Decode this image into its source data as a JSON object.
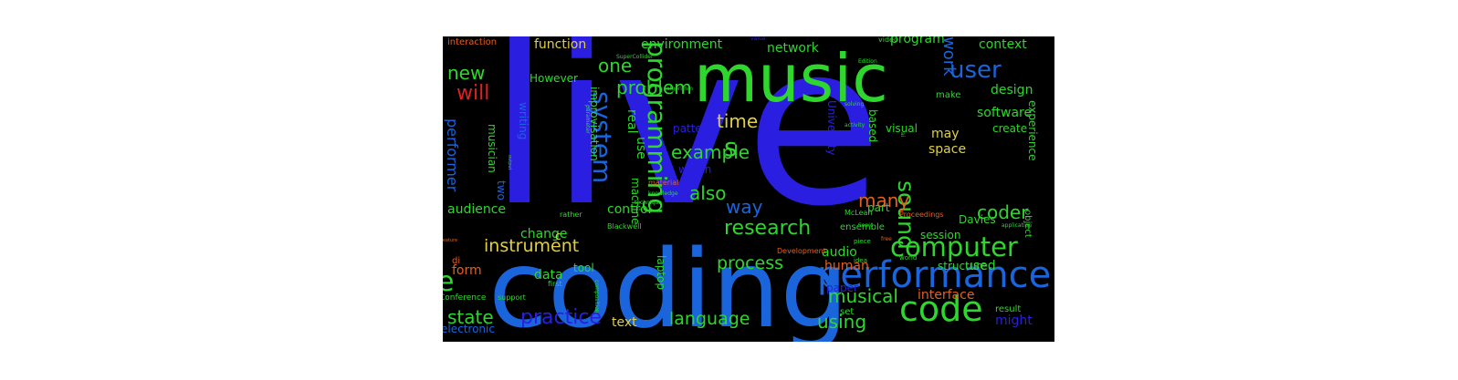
{
  "colors": {
    "background": "#000000",
    "page": "#ffffff"
  },
  "words": [
    {
      "text": "live",
      "color": "#2a1fe0"
    },
    {
      "text": "coding",
      "color": "#1a64dc"
    },
    {
      "text": "music",
      "color": "#2ed62e"
    },
    {
      "text": "performance",
      "color": "#1a64dc"
    },
    {
      "text": "code",
      "color": "#2ed62e"
    },
    {
      "text": "computer",
      "color": "#2ed62e"
    },
    {
      "text": "programming",
      "color": "#2ed62e"
    },
    {
      "text": "system",
      "color": "#1a64dc"
    },
    {
      "text": "s",
      "color": "#2ed62e"
    },
    {
      "text": "e",
      "color": "#2ed62e"
    },
    {
      "text": "user",
      "color": "#1a64dc"
    },
    {
      "text": "sound",
      "color": "#2ed62e"
    },
    {
      "text": "research",
      "color": "#2ed62e"
    },
    {
      "text": "practice",
      "color": "#2a1fe0"
    },
    {
      "text": "language",
      "color": "#2ed62e"
    },
    {
      "text": "instrument",
      "color": "#e0d040"
    },
    {
      "text": "process",
      "color": "#2ed62e"
    },
    {
      "text": "will",
      "color": "#e02020"
    },
    {
      "text": "new",
      "color": "#2ed62e"
    },
    {
      "text": "one",
      "color": "#2ed62e"
    },
    {
      "text": "problem",
      "color": "#2ed62e"
    },
    {
      "text": "time",
      "color": "#e0d040"
    },
    {
      "text": "also",
      "color": "#2ed62e"
    },
    {
      "text": "example",
      "color": "#2ed62e"
    },
    {
      "text": "many",
      "color": "#e06020"
    },
    {
      "text": "way",
      "color": "#1a64dc"
    },
    {
      "text": "coder",
      "color": "#2ed62e"
    },
    {
      "text": "musical",
      "color": "#2ed62e"
    },
    {
      "text": "state",
      "color": "#2ed62e"
    },
    {
      "text": "using",
      "color": "#2ed62e"
    },
    {
      "text": "work",
      "color": "#1a64dc"
    },
    {
      "text": "design",
      "color": "#2ed62e"
    },
    {
      "text": "software",
      "color": "#2ed62e"
    },
    {
      "text": "context",
      "color": "#2ed62e"
    },
    {
      "text": "environment",
      "color": "#2ed62e"
    },
    {
      "text": "network",
      "color": "#2ed62e"
    },
    {
      "text": "function",
      "color": "#e0d040"
    },
    {
      "text": "program",
      "color": "#2ed62e"
    },
    {
      "text": "performer",
      "color": "#1a64dc"
    },
    {
      "text": "audience",
      "color": "#2ed62e"
    },
    {
      "text": "change",
      "color": "#2ed62e"
    },
    {
      "text": "control",
      "color": "#2ed62e"
    },
    {
      "text": "interface",
      "color": "#e06020"
    },
    {
      "text": "used",
      "color": "#2ed62e"
    },
    {
      "text": "might",
      "color": "#2a1fe0"
    },
    {
      "text": "text",
      "color": "#e0d040"
    },
    {
      "text": "data",
      "color": "#2ed62e"
    },
    {
      "text": "form",
      "color": "#e06020"
    },
    {
      "text": "audio",
      "color": "#2ed62e"
    },
    {
      "text": "human",
      "color": "#e06020"
    },
    {
      "text": "structure",
      "color": "#2ed62e"
    },
    {
      "text": "paper",
      "color": "#2a1fe0"
    },
    {
      "text": "session",
      "color": "#2ed62e"
    },
    {
      "text": "experience",
      "color": "#2ed62e"
    },
    {
      "text": "Davies",
      "color": "#2ed62e"
    },
    {
      "text": "space",
      "color": "#e0d040"
    },
    {
      "text": "may",
      "color": "#e0d040"
    },
    {
      "text": "based",
      "color": "#2ed62e"
    },
    {
      "text": "visual",
      "color": "#2ed62e"
    },
    {
      "text": "part",
      "color": "#2ed62e"
    },
    {
      "text": "create",
      "color": "#2ed62e"
    },
    {
      "text": "pattern",
      "color": "#2a1fe0"
    },
    {
      "text": "within",
      "color": "#2a1fe0"
    },
    {
      "text": "use",
      "color": "#2ed62e"
    },
    {
      "text": "real",
      "color": "#2ed62e"
    },
    {
      "text": "However",
      "color": "#2ed62e"
    },
    {
      "text": "musician",
      "color": "#2ed62e"
    },
    {
      "text": "writing",
      "color": "#1a64dc"
    },
    {
      "text": "two",
      "color": "#1a64dc"
    },
    {
      "text": "improvisation",
      "color": "#2ed62e"
    },
    {
      "text": "machine",
      "color": "#2ed62e"
    },
    {
      "text": "University",
      "color": "#2a1fe0"
    },
    {
      "text": "tool",
      "color": "#2ed62e"
    },
    {
      "text": "laptop",
      "color": "#2ed62e"
    },
    {
      "text": "set",
      "color": "#2ed62e"
    },
    {
      "text": "result",
      "color": "#2ed62e"
    },
    {
      "text": "electronic",
      "color": "#1a64dc"
    },
    {
      "text": "interaction",
      "color": "#e06020"
    },
    {
      "text": "make",
      "color": "#2ed62e"
    },
    {
      "text": "object",
      "color": "#2ed62e"
    },
    {
      "text": "ensemble",
      "color": "#2ed62e"
    },
    {
      "text": "McLean",
      "color": "#2ed62e"
    },
    {
      "text": "Proceedings",
      "color": "#e06020"
    },
    {
      "text": "c",
      "color": "#e0d040"
    },
    {
      "text": "di",
      "color": "#e06020"
    },
    {
      "text": "Conference",
      "color": "#2ed62e"
    },
    {
      "text": "support",
      "color": "#2ed62e"
    },
    {
      "text": "first",
      "color": "#2ed62e"
    },
    {
      "text": "composition",
      "color": "#2ed62e"
    },
    {
      "text": "Blackwell",
      "color": "#2ed62e"
    },
    {
      "text": "rather",
      "color": "#2ed62e"
    },
    {
      "text": "technique",
      "color": "#2ed62e"
    },
    {
      "text": "material",
      "color": "#e06020"
    },
    {
      "text": "knowledge",
      "color": "#2ed62e"
    },
    {
      "text": "algorithm",
      "color": "#2ed62e"
    },
    {
      "text": "parameter",
      "color": "#2ed62e"
    },
    {
      "text": "solving",
      "color": "#2ed62e"
    },
    {
      "text": "activity",
      "color": "#2ed62e"
    },
    {
      "text": "SuperCollider",
      "color": "#2ed62e"
    },
    {
      "text": "value",
      "color": "#2a1fe0"
    },
    {
      "text": "video",
      "color": "#2ed62e"
    },
    {
      "text": "Edition",
      "color": "#2ed62e"
    },
    {
      "text": "application",
      "color": "#2ed62e"
    },
    {
      "text": "idea",
      "color": "#2ed62e"
    },
    {
      "text": "piece",
      "color": "#2ed62e"
    },
    {
      "text": "Development",
      "color": "#e06020"
    },
    {
      "text": "world",
      "color": "#2ed62e"
    },
    {
      "text": "free",
      "color": "#e06020"
    },
    {
      "text": "Sonic",
      "color": "#2ed62e"
    },
    {
      "text": "ai",
      "color": "#2ed62e"
    },
    {
      "text": "output",
      "color": "#2ed62e"
    },
    {
      "text": "feature",
      "color": "#e06020"
    }
  ]
}
